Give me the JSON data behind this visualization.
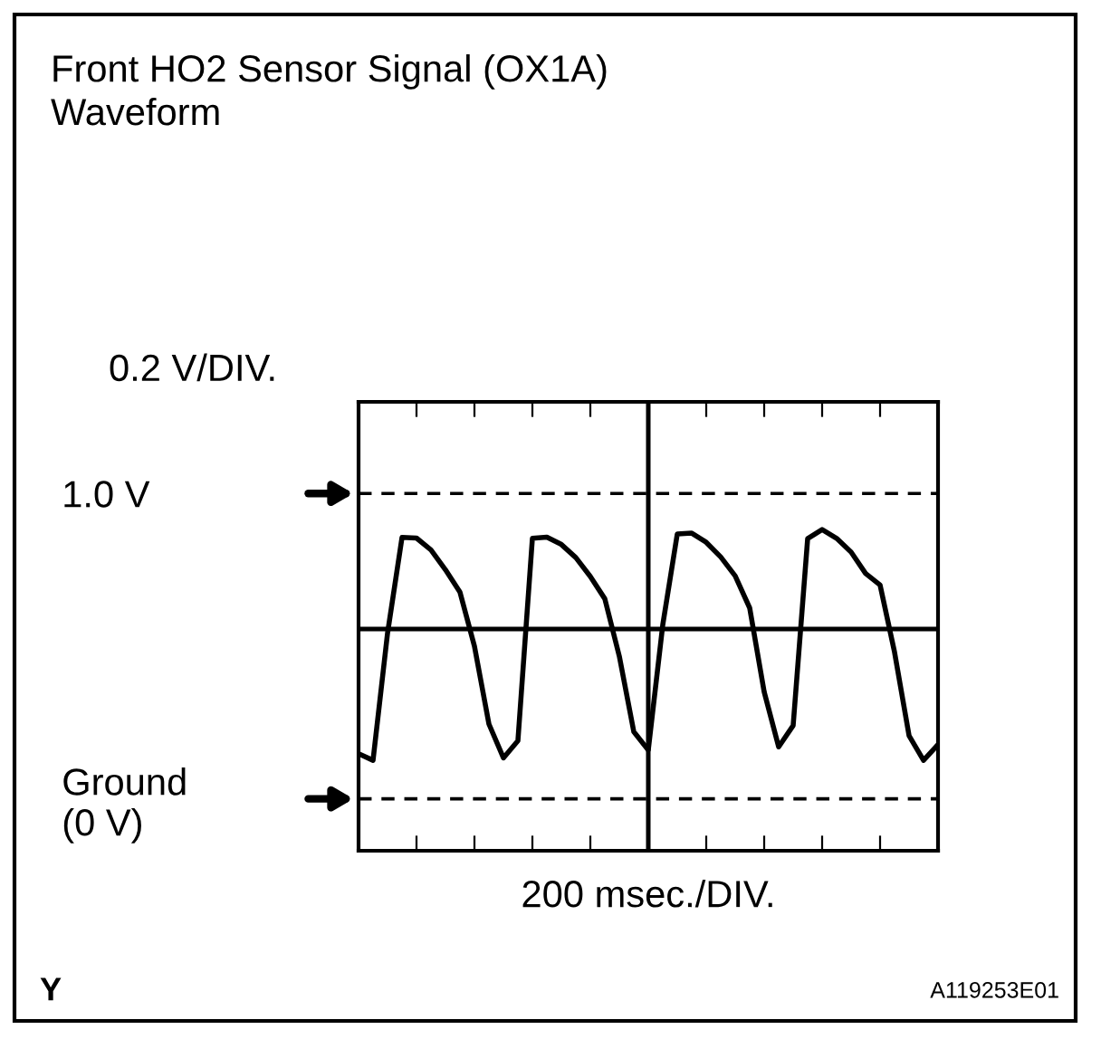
{
  "chart_data": {
    "type": "line",
    "title": "Front HO2 Sensor Signal (OX1A)\nWaveform",
    "ylabel": "0.2 V/DIV.",
    "xlabel": "200 msec./DIV.",
    "annotations": [
      "Y",
      "A119253E01"
    ],
    "ylim": [
      -0.17,
      1.3
    ],
    "categories": [
      null,
      null,
      null,
      null,
      null,
      null,
      null,
      null,
      null,
      null,
      null,
      null,
      null,
      null,
      null,
      null,
      null,
      null,
      null,
      null,
      null,
      null,
      null,
      null,
      null,
      null,
      null,
      null,
      null,
      null,
      null,
      null,
      null,
      null,
      null,
      null,
      null,
      null,
      null,
      null,
      null
    ],
    "yticks": [
      {
        "value": 0,
        "label": "Ground\n(0 V)"
      },
      {
        "value": 1.0,
        "label": "1.0 V"
      }
    ],
    "ref_lines": [
      {
        "axis": "y",
        "value": 0,
        "color": "#000000",
        "line_style": "dashed"
      },
      {
        "axis": "y",
        "value": 1.0,
        "color": "#000000",
        "line_style": "dashed"
      },
      {
        "axis": "y",
        "value": 0.556,
        "color": "#000000",
        "line_style": "solid"
      }
    ],
    "grid": false,
    "marker": "none",
    "line_style": "solid",
    "series": [
      {
        "color": "#000000",
        "values": [
          0.148,
          0.126,
          0.542,
          0.856,
          0.854,
          0.815,
          0.75,
          0.677,
          0.5,
          0.245,
          0.134,
          0.19,
          0.853,
          0.857,
          0.833,
          0.79,
          0.728,
          0.655,
          0.467,
          0.22,
          0.16,
          0.57,
          0.867,
          0.87,
          0.84,
          0.792,
          0.73,
          0.625,
          0.35,
          0.17,
          0.24,
          0.852,
          0.882,
          0.853,
          0.808,
          0.738,
          0.7,
          0.48,
          0.207,
          0.126,
          0.178
        ]
      }
    ]
  }
}
